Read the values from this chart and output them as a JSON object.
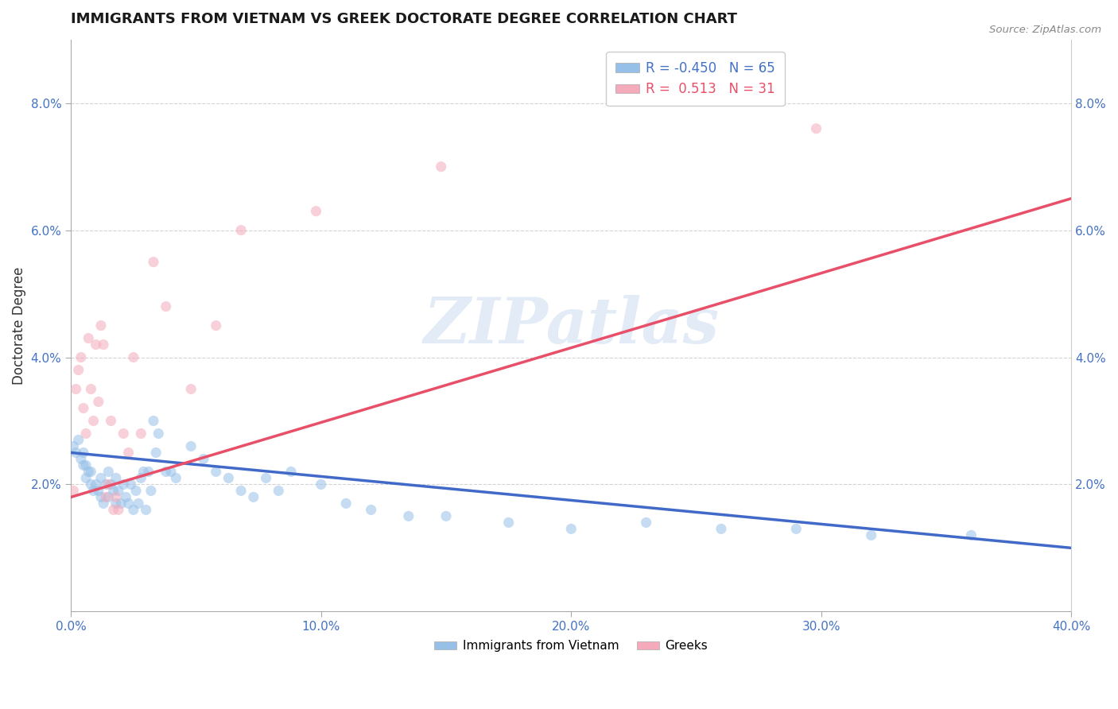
{
  "title": "IMMIGRANTS FROM VIETNAM VS GREEK DOCTORATE DEGREE CORRELATION CHART",
  "source": "Source: ZipAtlas.com",
  "ylabel": "Doctorate Degree",
  "xlabel": "",
  "xlim": [
    0.0,
    0.4
  ],
  "ylim": [
    0.0,
    0.09
  ],
  "xticks": [
    0.0,
    0.1,
    0.2,
    0.3,
    0.4
  ],
  "xticklabels": [
    "0.0%",
    "10.0%",
    "20.0%",
    "30.0%",
    "40.0%"
  ],
  "yticks": [
    0.02,
    0.04,
    0.06,
    0.08
  ],
  "yticklabels": [
    "2.0%",
    "4.0%",
    "6.0%",
    "8.0%"
  ],
  "grid_color": "#c8c8c8",
  "background_color": "#ffffff",
  "watermark": "ZIPatlas",
  "legend_top": {
    "blue_label": "R = -0.450   N = 65",
    "pink_label": "R =  0.513   N = 31"
  },
  "legend_bottom": {
    "blue_label": "Immigrants from Vietnam",
    "pink_label": "Greeks"
  },
  "blue_color": "#96C0E8",
  "pink_color": "#F4AABB",
  "blue_line_color": "#4169C8",
  "pink_line_color": "#E8506A",
  "dot_size": 90,
  "dot_alpha": 0.55,
  "blue_points": [
    [
      0.001,
      0.026
    ],
    [
      0.002,
      0.025
    ],
    [
      0.003,
      0.027
    ],
    [
      0.004,
      0.024
    ],
    [
      0.005,
      0.023
    ],
    [
      0.005,
      0.025
    ],
    [
      0.006,
      0.021
    ],
    [
      0.006,
      0.023
    ],
    [
      0.007,
      0.022
    ],
    [
      0.008,
      0.02
    ],
    [
      0.008,
      0.022
    ],
    [
      0.009,
      0.019
    ],
    [
      0.01,
      0.02
    ],
    [
      0.011,
      0.019
    ],
    [
      0.012,
      0.021
    ],
    [
      0.012,
      0.018
    ],
    [
      0.013,
      0.017
    ],
    [
      0.014,
      0.02
    ],
    [
      0.015,
      0.018
    ],
    [
      0.015,
      0.022
    ],
    [
      0.016,
      0.02
    ],
    [
      0.017,
      0.019
    ],
    [
      0.018,
      0.017
    ],
    [
      0.018,
      0.021
    ],
    [
      0.019,
      0.019
    ],
    [
      0.02,
      0.017
    ],
    [
      0.021,
      0.02
    ],
    [
      0.022,
      0.018
    ],
    [
      0.023,
      0.017
    ],
    [
      0.024,
      0.02
    ],
    [
      0.025,
      0.016
    ],
    [
      0.026,
      0.019
    ],
    [
      0.027,
      0.017
    ],
    [
      0.028,
      0.021
    ],
    [
      0.029,
      0.022
    ],
    [
      0.03,
      0.016
    ],
    [
      0.031,
      0.022
    ],
    [
      0.032,
      0.019
    ],
    [
      0.033,
      0.03
    ],
    [
      0.034,
      0.025
    ],
    [
      0.035,
      0.028
    ],
    [
      0.038,
      0.022
    ],
    [
      0.04,
      0.022
    ],
    [
      0.042,
      0.021
    ],
    [
      0.048,
      0.026
    ],
    [
      0.053,
      0.024
    ],
    [
      0.058,
      0.022
    ],
    [
      0.063,
      0.021
    ],
    [
      0.068,
      0.019
    ],
    [
      0.073,
      0.018
    ],
    [
      0.078,
      0.021
    ],
    [
      0.083,
      0.019
    ],
    [
      0.088,
      0.022
    ],
    [
      0.1,
      0.02
    ],
    [
      0.11,
      0.017
    ],
    [
      0.12,
      0.016
    ],
    [
      0.135,
      0.015
    ],
    [
      0.15,
      0.015
    ],
    [
      0.175,
      0.014
    ],
    [
      0.2,
      0.013
    ],
    [
      0.23,
      0.014
    ],
    [
      0.26,
      0.013
    ],
    [
      0.29,
      0.013
    ],
    [
      0.32,
      0.012
    ],
    [
      0.36,
      0.012
    ]
  ],
  "pink_points": [
    [
      0.001,
      0.019
    ],
    [
      0.002,
      0.035
    ],
    [
      0.003,
      0.038
    ],
    [
      0.004,
      0.04
    ],
    [
      0.005,
      0.032
    ],
    [
      0.006,
      0.028
    ],
    [
      0.007,
      0.043
    ],
    [
      0.008,
      0.035
    ],
    [
      0.009,
      0.03
    ],
    [
      0.01,
      0.042
    ],
    [
      0.011,
      0.033
    ],
    [
      0.012,
      0.045
    ],
    [
      0.013,
      0.042
    ],
    [
      0.014,
      0.018
    ],
    [
      0.015,
      0.02
    ],
    [
      0.016,
      0.03
    ],
    [
      0.017,
      0.016
    ],
    [
      0.018,
      0.018
    ],
    [
      0.019,
      0.016
    ],
    [
      0.021,
      0.028
    ],
    [
      0.023,
      0.025
    ],
    [
      0.025,
      0.04
    ],
    [
      0.028,
      0.028
    ],
    [
      0.033,
      0.055
    ],
    [
      0.038,
      0.048
    ],
    [
      0.048,
      0.035
    ],
    [
      0.058,
      0.045
    ],
    [
      0.068,
      0.06
    ],
    [
      0.098,
      0.063
    ],
    [
      0.148,
      0.07
    ],
    [
      0.298,
      0.076
    ]
  ],
  "blue_trendline": {
    "x_start": 0.0,
    "y_start": 0.025,
    "x_end": 0.4,
    "y_end": 0.01
  },
  "pink_trendline": {
    "x_start": 0.0,
    "y_start": 0.018,
    "x_end": 0.4,
    "y_end": 0.065
  }
}
